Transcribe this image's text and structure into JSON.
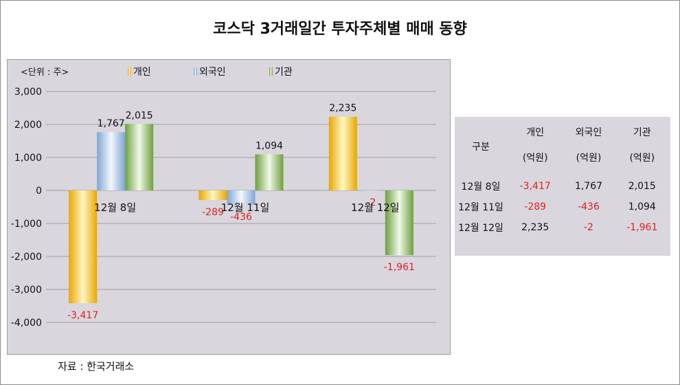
{
  "title": "코스닥 3거래일간 투자주체별 매매 동향",
  "unit_label": "<단위 : 주>",
  "source": "자료 : 한국거래소",
  "colors": {
    "individual": "#f5c518",
    "foreign": "#9dbde0",
    "institution": "#8fbf5a",
    "negative_text": "#e02020"
  },
  "chart_data": {
    "type": "bar",
    "categories": [
      "12월 8일",
      "12월 11일",
      "12월 12일"
    ],
    "series": [
      {
        "name": "개인",
        "values": [
          -3417,
          -289,
          2235
        ]
      },
      {
        "name": "외국인",
        "values": [
          1767,
          -436,
          -2
        ]
      },
      {
        "name": "기관",
        "values": [
          2015,
          1094,
          -1961
        ]
      }
    ],
    "ylim": [
      -4000,
      3000
    ],
    "yticks": [
      3000,
      2000,
      1000,
      0,
      -1000,
      -2000,
      -3000,
      -4000
    ],
    "ytick_labels": [
      "3,000",
      "2,000",
      "1,000",
      "0",
      "-1,000",
      "-2,000",
      "-3,000",
      "-4,000"
    ],
    "data_labels": [
      [
        "-3,417",
        "1,767",
        "2,015"
      ],
      [
        "-289",
        "-436",
        "1,094"
      ],
      [
        "2,235",
        "-2",
        "-1,961"
      ]
    ],
    "grid": true,
    "legend": "top"
  },
  "table": {
    "header_top": [
      "구분",
      "개인",
      "외국인",
      "기관"
    ],
    "header_sub": [
      "(억원)",
      "(억원)",
      "(억원)"
    ],
    "rows": [
      {
        "label": "12월 8일",
        "values": [
          "-3,417",
          "1,767",
          "2,015"
        ],
        "neg": [
          true,
          false,
          false
        ]
      },
      {
        "label": "12월 11일",
        "values": [
          "-289",
          "-436",
          "1,094"
        ],
        "neg": [
          true,
          true,
          false
        ]
      },
      {
        "label": "12월 12일",
        "values": [
          "2,235",
          "-2",
          "-1,961"
        ],
        "neg": [
          false,
          true,
          true
        ]
      }
    ]
  }
}
